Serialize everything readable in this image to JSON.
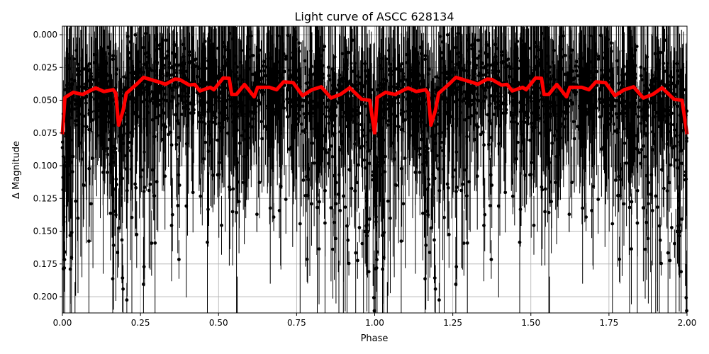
{
  "chart_data": {
    "type": "scatter",
    "title": "Light curve of ASCC 628134",
    "xlabel": "Phase",
    "ylabel": "Δ Magnitude",
    "xlim": [
      0,
      2
    ],
    "ylim": [
      0.2124,
      -0.0065
    ],
    "y_inverted": true,
    "grid": true,
    "xticks": [
      "0.00",
      "0.25",
      "0.50",
      "0.75",
      "1.00",
      "1.25",
      "1.50",
      "1.75",
      "2.00"
    ],
    "yticks": [
      "0.000",
      "0.025",
      "0.050",
      "0.075",
      "0.100",
      "0.125",
      "0.150",
      "0.175",
      "0.200"
    ],
    "series": [
      {
        "kind": "observations-with-errorbars",
        "color": "#000000"
      },
      {
        "kind": "binned-curve",
        "color": "#ff0000",
        "period_repeat": 1,
        "phase": [
          0,
          0.008,
          0.035,
          0.065,
          0.095,
          0.107,
          0.133,
          0.163,
          0.171,
          0.18,
          0.194,
          0.205,
          0.239,
          0.26,
          0.285,
          0.315,
          0.33,
          0.36,
          0.375,
          0.406,
          0.424,
          0.44,
          0.474,
          0.485,
          0.515,
          0.534,
          0.542,
          0.557,
          0.583,
          0.614,
          0.625,
          0.663,
          0.686,
          0.708,
          0.739,
          0.769,
          0.799,
          0.829,
          0.86,
          0.89,
          0.92,
          0.958,
          0.984,
          1.0
        ],
        "mag": [
          0.076,
          0.048,
          0.044,
          0.0456,
          0.042,
          0.0407,
          0.0434,
          0.042,
          0.0447,
          0.069,
          0.058,
          0.0447,
          0.0375,
          0.0326,
          0.0344,
          0.0366,
          0.0379,
          0.0339,
          0.0342,
          0.0384,
          0.038,
          0.0429,
          0.0402,
          0.042,
          0.033,
          0.0333,
          0.0456,
          0.0456,
          0.038,
          0.0474,
          0.0402,
          0.0402,
          0.042,
          0.036,
          0.0366,
          0.0465,
          0.042,
          0.0398,
          0.0483,
          0.0456,
          0.0405,
          0.0492,
          0.0501,
          0.076
        ]
      }
    ]
  }
}
